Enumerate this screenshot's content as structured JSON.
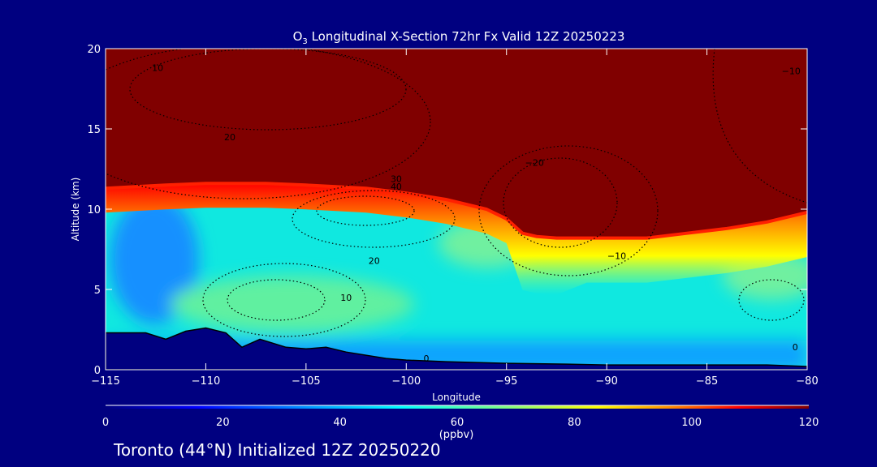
{
  "chart_data": {
    "type": "heatmap",
    "title": "O3 Longitudinal X-Section 72hr  Fx Valid 12Z 20250223",
    "title_main": "O",
    "title_sub": "3",
    "title_rest": " Longitudinal X-Section 72hr  Fx Valid 12Z 20250223",
    "xlabel": "Longitude",
    "ylabel": "Altitude (km)",
    "xlim": [
      -115,
      -80
    ],
    "ylim": [
      0,
      20
    ],
    "xticks": [
      -115,
      -110,
      -105,
      -100,
      -95,
      -90,
      -85,
      -80
    ],
    "xtick_labels": [
      "−115",
      "−110",
      "−105",
      "−100",
      "−95",
      "−90",
      "−85",
      "−80"
    ],
    "yticks": [
      0,
      5,
      10,
      15,
      20
    ],
    "ytick_labels": [
      "0",
      "5",
      "10",
      "15",
      "20"
    ],
    "colorbar": {
      "label": "(ppbv)",
      "range": [
        0,
        120
      ],
      "ticks": [
        0,
        20,
        40,
        60,
        80,
        100,
        120
      ],
      "tick_labels": [
        "0",
        "20",
        "40",
        "60",
        "80",
        "100",
        "120"
      ],
      "colors": [
        "#000080",
        "#0000ff",
        "#00a0ff",
        "#00ffff",
        "#80ff80",
        "#ffff00",
        "#ff8000",
        "#ff0000",
        "#800000"
      ]
    },
    "tropopause_120ppbv_km": {
      "lon": [
        -115,
        -112,
        -110,
        -107,
        -105,
        -102,
        -100,
        -98,
        -96,
        -95,
        -94.2,
        -93.5,
        -92.5,
        -91,
        -88,
        -86,
        -84,
        -82,
        -80
      ],
      "alt": [
        11.3,
        11.5,
        11.6,
        11.6,
        11.5,
        11.3,
        11.0,
        10.6,
        10.0,
        9.4,
        8.5,
        8.3,
        8.2,
        8.2,
        8.2,
        8.5,
        8.8,
        9.2,
        9.8
      ]
    },
    "terrain_km": {
      "lon": [
        -115,
        -113,
        -112,
        -111,
        -110,
        -109,
        -108.2,
        -107.3,
        -106,
        -105,
        -104,
        -103,
        -101,
        -100,
        -98,
        -95,
        -92,
        -90,
        -86,
        -84,
        -82,
        -80
      ],
      "alt": [
        2.3,
        2.3,
        1.9,
        2.4,
        2.6,
        2.3,
        1.4,
        1.9,
        1.4,
        1.3,
        1.4,
        1.1,
        0.7,
        0.6,
        0.5,
        0.4,
        0.35,
        0.3,
        0.3,
        0.3,
        0.3,
        0.2
      ]
    },
    "contour_labels": [
      {
        "text": "10",
        "lon": -112.4,
        "alt": 18.6
      },
      {
        "text": "20",
        "lon": -108.8,
        "alt": 14.3
      },
      {
        "text": "30",
        "lon": -100.5,
        "alt": 11.7
      },
      {
        "text": "40",
        "lon": -100.5,
        "alt": 11.2
      },
      {
        "text": "−20",
        "lon": -93.6,
        "alt": 12.7
      },
      {
        "text": "20",
        "lon": -101.6,
        "alt": 6.6
      },
      {
        "text": "10",
        "lon": -103.0,
        "alt": 4.3
      },
      {
        "text": "−10",
        "lon": -89.5,
        "alt": 6.9
      },
      {
        "text": "−10",
        "lon": -80.8,
        "alt": 18.4
      },
      {
        "text": "0",
        "lon": -99.0,
        "alt": 0.5
      },
      {
        "text": "0",
        "lon": -80.6,
        "alt": 1.2
      }
    ]
  },
  "footer": "Toronto (44°N) Initialized 12Z 20250220"
}
